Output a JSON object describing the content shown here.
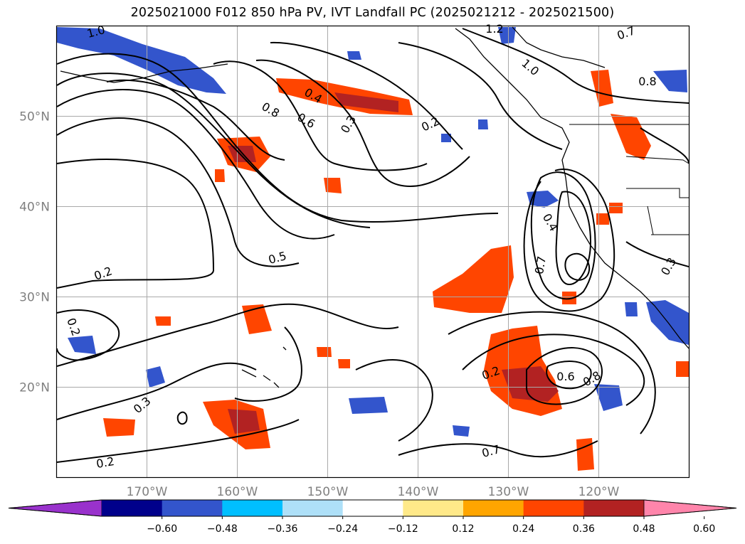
{
  "title": "2025021000 F012 850 hPa PV, IVT Landfall PC (2025021212 - 2025021500)",
  "map": {
    "lon_range": [
      -180,
      -110
    ],
    "lat_range": [
      10,
      60
    ],
    "lon_ticks": [
      {
        "lon": -170,
        "label": "170°W"
      },
      {
        "lon": -160,
        "label": "160°W"
      },
      {
        "lon": -150,
        "label": "150°W"
      },
      {
        "lon": -140,
        "label": "140°W"
      },
      {
        "lon": -130,
        "label": "130°W"
      },
      {
        "lon": -120,
        "label": "120°W"
      }
    ],
    "lat_ticks": [
      {
        "lat": 50,
        "label": "50°N"
      },
      {
        "lat": 40,
        "label": "40°N"
      },
      {
        "lat": 30,
        "label": "30°N"
      },
      {
        "lat": 20,
        "label": "20°N"
      }
    ],
    "grid": true
  },
  "contour_labels": [
    "1.0",
    "1.2",
    "0.7",
    "0.4",
    "0.8",
    "0.6",
    "0.3",
    "0.2",
    "0.5",
    "0.3",
    "0.2",
    "0.2",
    "0.4",
    "0.7",
    "0.8",
    "0.6",
    "0.7",
    "0.2",
    "0.3",
    "0.2",
    "1.0",
    "0.8"
  ],
  "colorbar": {
    "extend": "both",
    "colors": [
      "#9932cc",
      "#00008b",
      "#3355cc",
      "#00bfff",
      "#aee0f8",
      "#ffffff",
      "#ffe989",
      "#ffa500",
      "#ff4500",
      "#b22222",
      "#ff85ab"
    ],
    "tick_labels": [
      "−0.60",
      "−0.48",
      "−0.36",
      "−0.24",
      "−0.12",
      "0.12",
      "0.24",
      "0.36",
      "0.48",
      "0.60"
    ]
  },
  "colors": {
    "pos_strong": "#ff4500",
    "pos_stronger": "#b22222",
    "neg": "#3355cc",
    "neg_light": "#00bfff",
    "contour": "#000000",
    "grid": "#a9a9a9",
    "tick_text": "#808080"
  }
}
